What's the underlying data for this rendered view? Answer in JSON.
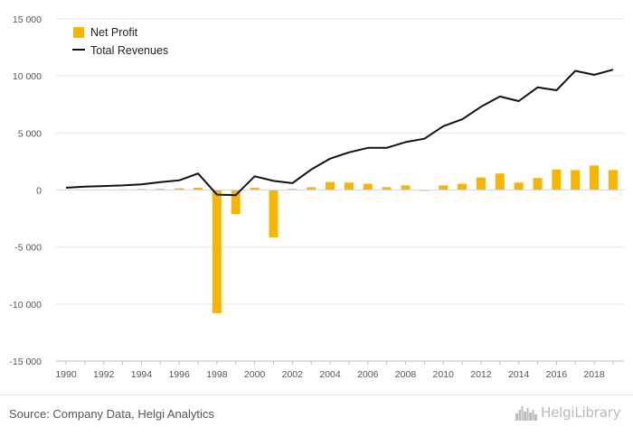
{
  "chart_data": {
    "type": "bar",
    "title": "",
    "xlabel": "",
    "ylabel": "",
    "ylim": [
      -15000,
      15000
    ],
    "y_ticks": [
      15000,
      10000,
      5000,
      0,
      -5000,
      -10000,
      -15000
    ],
    "y_tick_labels": [
      "15 000",
      "10 000",
      "5 000",
      "0",
      "-5 000",
      "-10 000",
      "-15 000"
    ],
    "x_tick_labels": [
      "1990",
      "1992",
      "1994",
      "1996",
      "1998",
      "2000",
      "2002",
      "2004",
      "2006",
      "2008",
      "2010",
      "2012",
      "2014",
      "2016",
      "2018"
    ],
    "categories": [
      "1990",
      "1991",
      "1992",
      "1993",
      "1994",
      "1995",
      "1996",
      "1997",
      "1998",
      "1999",
      "2000",
      "2001",
      "2002",
      "2003",
      "2004",
      "2005",
      "2006",
      "2007",
      "2008",
      "2009",
      "2010",
      "2011",
      "2012",
      "2013",
      "2014",
      "2015",
      "2016",
      "2017",
      "2018",
      "2019"
    ],
    "grid": true,
    "legend_position": "top-left",
    "series": [
      {
        "name": "Net Profit",
        "type": "bar",
        "color": "#f7b500",
        "values": [
          30,
          40,
          50,
          60,
          80,
          100,
          150,
          200,
          -10800,
          -2100,
          200,
          -4150,
          100,
          250,
          700,
          650,
          550,
          250,
          400,
          -80,
          400,
          550,
          1100,
          1450,
          650,
          1050,
          1800,
          1750,
          2150,
          1750
        ]
      },
      {
        "name": "Total Revenues",
        "type": "line",
        "color": "#111111",
        "values": [
          200,
          300,
          350,
          400,
          500,
          700,
          850,
          1450,
          -400,
          -450,
          1200,
          800,
          600,
          1800,
          2750,
          3300,
          3700,
          3700,
          4200,
          4500,
          5600,
          6200,
          7300,
          8200,
          7800,
          9000,
          8750,
          10450,
          10100,
          10550
        ]
      }
    ]
  },
  "footer": {
    "source": "Source: Company Data, Helgi Analytics",
    "brand": "HelgiLibrary",
    "brand_icon": "skyline-logo-icon"
  }
}
